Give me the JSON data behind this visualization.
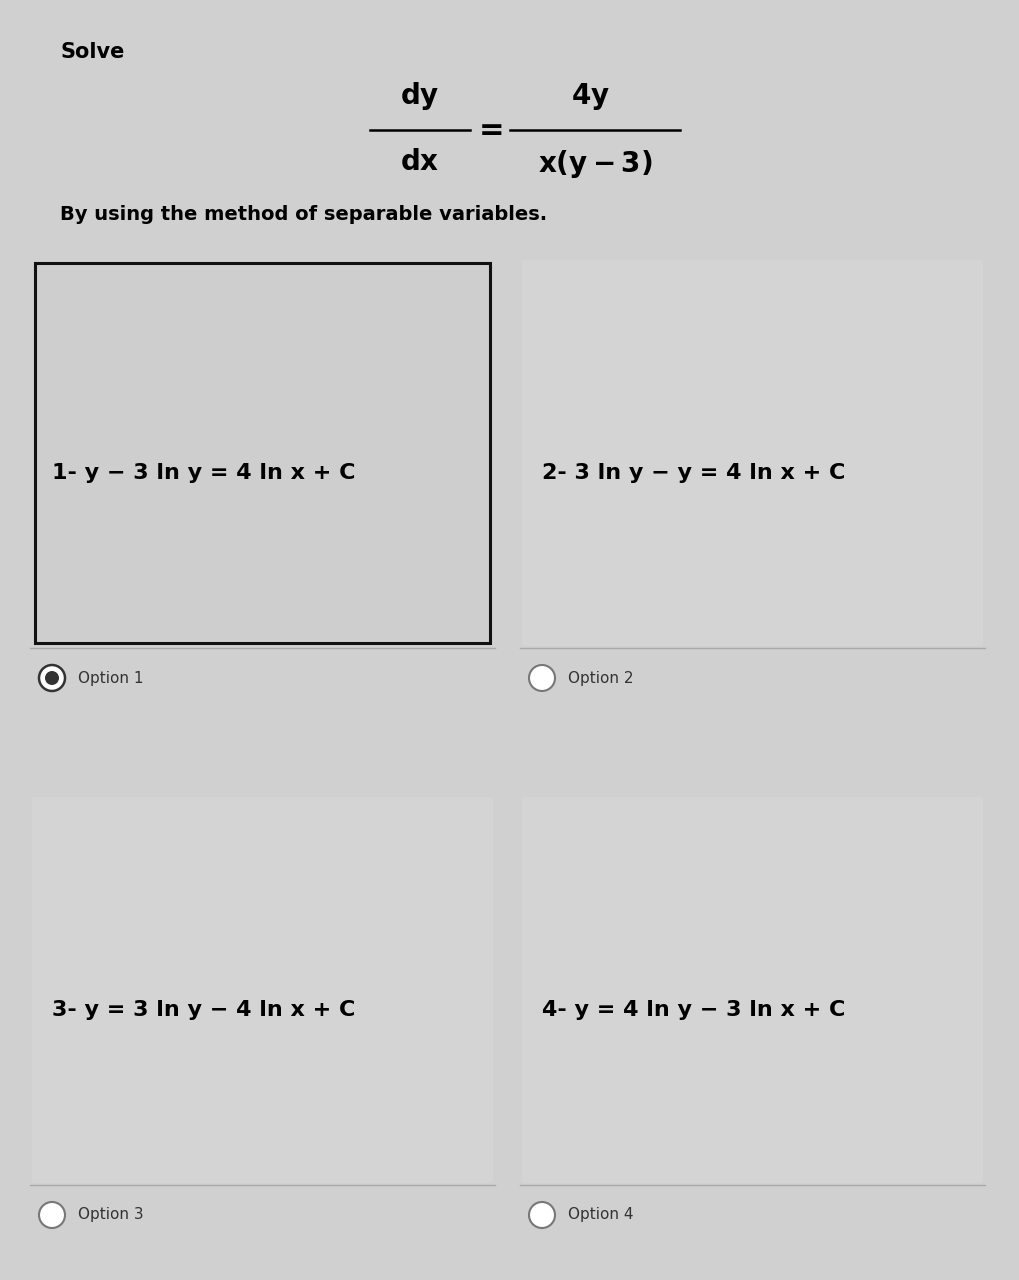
{
  "bg_color": "#d0d0d0",
  "card_bg": "#cbcbcb",
  "selected_card_bg": "#c8c8c8",
  "title": "Solve",
  "subtitle": "By using the method of separable variables.",
  "options": [
    {
      "num": "1-",
      "formula": " y − 3 ln y = 4 ln x + C",
      "label": "Option 1",
      "selected": true
    },
    {
      "num": "2-",
      "formula": " 3 ln y − y = 4 ln x + C",
      "label": "Option 2",
      "selected": false
    },
    {
      "num": "3-",
      "formula": " y = 3 ln y − 4 ln x + C",
      "label": "Option 3",
      "selected": false
    },
    {
      "num": "4-",
      "formula": " y = 4 ln y − 3 ln x + C",
      "label": "Option 4",
      "selected": false
    }
  ],
  "title_fontsize": 15,
  "subtitle_fontsize": 14,
  "formula_fontsize": 16,
  "option_label_fontsize": 11,
  "eq_fontsize": 20
}
